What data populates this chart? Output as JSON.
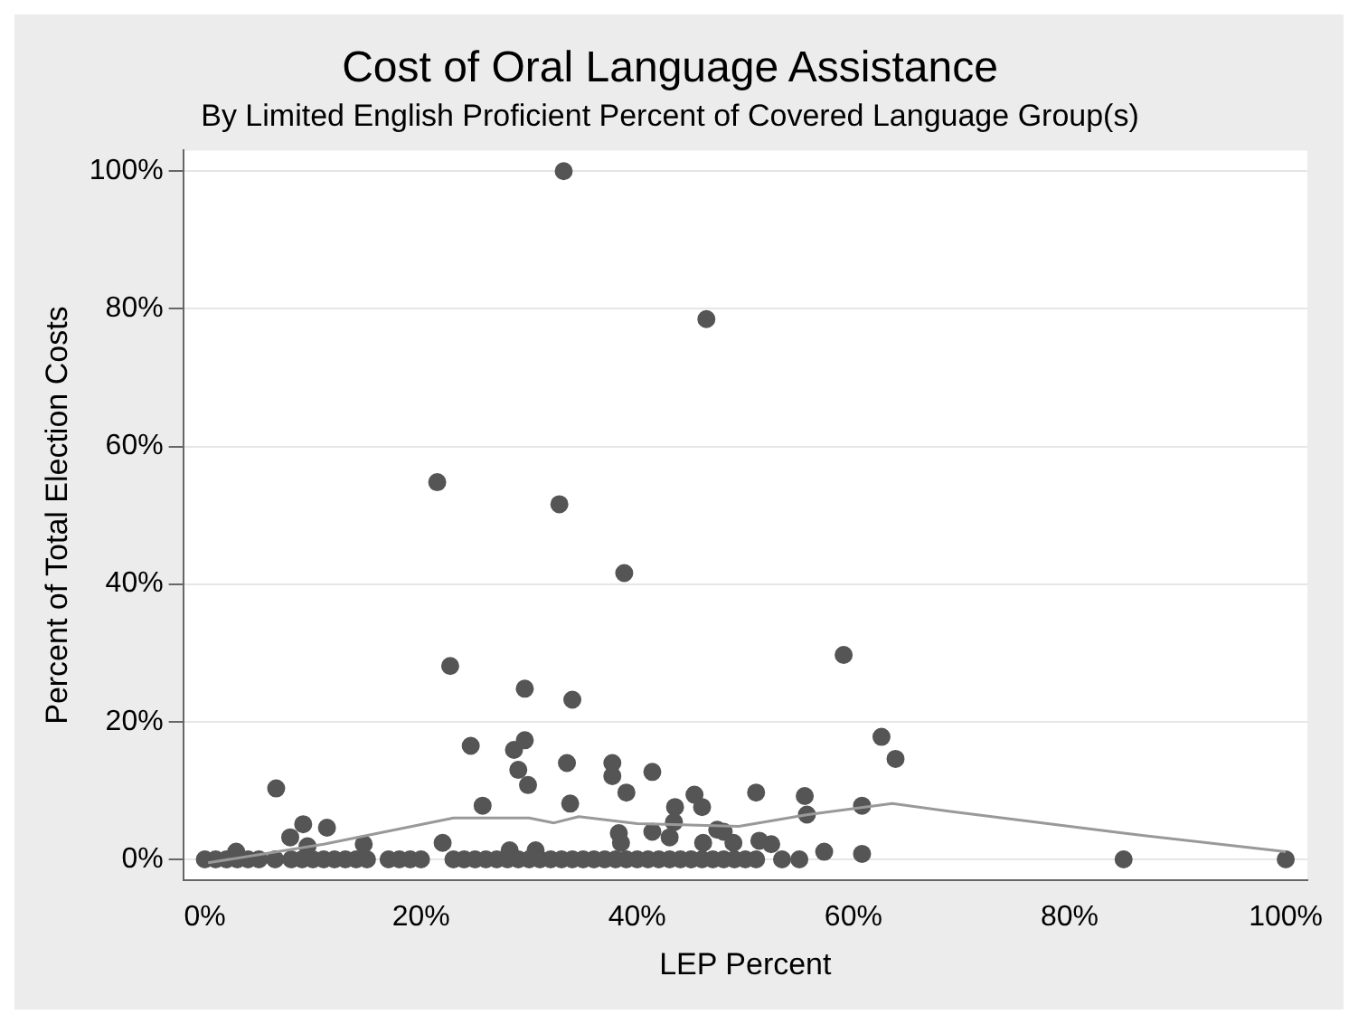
{
  "chart_data": {
    "type": "scatter",
    "title": "Cost of Oral Language Assistance",
    "subtitle": "By Limited English Proficient Percent of Covered Language Group(s)",
    "xlabel": "LEP Percent",
    "ylabel": "Percent of Total Election Costs",
    "xlim": [
      -2,
      102
    ],
    "ylim": [
      -3,
      103
    ],
    "xticks": [
      {
        "value": 0,
        "label": "0%"
      },
      {
        "value": 20,
        "label": "20%"
      },
      {
        "value": 40,
        "label": "40%"
      },
      {
        "value": 60,
        "label": "60%"
      },
      {
        "value": 80,
        "label": "80%"
      },
      {
        "value": 100,
        "label": "100%"
      }
    ],
    "yticks": [
      {
        "value": 0,
        "label": "0%"
      },
      {
        "value": 20,
        "label": "20%"
      },
      {
        "value": 40,
        "label": "40%"
      },
      {
        "value": 60,
        "label": "60%"
      },
      {
        "value": 80,
        "label": "80%"
      },
      {
        "value": 100,
        "label": "100%"
      }
    ],
    "grid": "y",
    "legend": false,
    "marker": "circle",
    "series": [
      {
        "type": "scatter",
        "color": "#555555",
        "x": [
          33.2,
          46.4,
          21.5,
          32.8,
          38.8,
          22.7,
          59.1,
          29.6,
          34,
          2.9,
          6.6,
          7.9,
          9.1,
          9.5,
          11.3,
          14.7,
          22,
          24.6,
          25.7,
          28.6,
          29.6,
          29,
          29.9,
          33.5,
          33.8,
          28.2,
          30.6,
          37.7,
          37.7,
          39,
          41.4,
          38.3,
          38.5,
          41.4,
          43,
          43.5,
          43.4,
          45.3,
          46,
          46.1,
          47.4,
          48,
          48.9,
          51,
          51.3,
          52.4,
          53.4,
          55,
          55.5,
          55.7,
          57.3,
          60.8,
          60.8,
          62.6,
          63.9,
          85,
          100,
          0,
          1,
          2,
          3,
          4,
          5,
          6.5,
          8,
          9,
          10,
          11,
          12,
          13,
          14,
          15,
          17,
          18,
          19,
          20,
          23,
          24,
          25,
          26,
          27,
          28,
          29,
          30,
          31,
          32,
          33,
          34,
          35,
          36,
          37,
          38,
          39,
          40,
          41,
          42,
          43,
          44,
          45,
          46,
          47,
          48,
          49,
          50,
          51
        ],
        "values": [
          100,
          78.5,
          54.8,
          51.6,
          41.6,
          28.1,
          29.7,
          24.8,
          23.2,
          1.1,
          10.3,
          3.2,
          5.1,
          1.9,
          4.6,
          2.2,
          2.4,
          16.5,
          7.8,
          15.9,
          17.3,
          13,
          10.8,
          14,
          8.1,
          1.3,
          1.3,
          14,
          12.1,
          9.7,
          12.7,
          3.8,
          2.4,
          4,
          3.2,
          7.6,
          5.4,
          9.4,
          7.6,
          2.4,
          4.3,
          4,
          2.4,
          9.7,
          2.7,
          2.2,
          0,
          0,
          9.2,
          6.5,
          1.1,
          7.8,
          0.8,
          17.8,
          14.6,
          0,
          0,
          0,
          0,
          0,
          0,
          0,
          0,
          0,
          0,
          0,
          0,
          0,
          0,
          0,
          0,
          0,
          0,
          0,
          0,
          0,
          0,
          0,
          0,
          0,
          0,
          0,
          0,
          0,
          0,
          0,
          0,
          0,
          0,
          0,
          0,
          0,
          0,
          0,
          0,
          0,
          0,
          0,
          0,
          0,
          0,
          0,
          0,
          0,
          0
        ]
      },
      {
        "type": "line",
        "color": "#999999",
        "marker": "none",
        "x": [
          0.3,
          11,
          23,
          30,
          32.3,
          34.6,
          40,
          49.4,
          55.8,
          63.6,
          68.8,
          85,
          100
        ],
        "values": [
          -0.5,
          2.2,
          6,
          6,
          5.3,
          6.2,
          5.2,
          4.8,
          6.5,
          8.1,
          7,
          3.8,
          1.1
        ]
      }
    ]
  }
}
